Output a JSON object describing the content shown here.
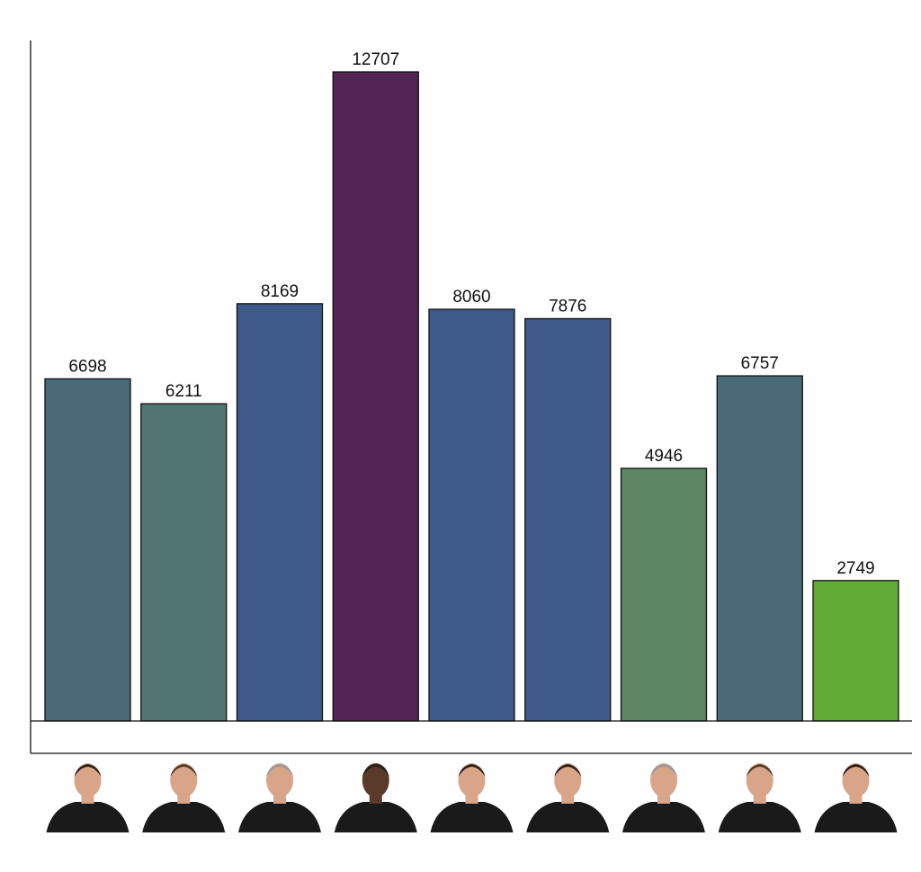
{
  "chart_data": {
    "type": "bar",
    "title": "",
    "xlabel": "",
    "ylabel": "",
    "ylim": [
      0,
      12707
    ],
    "grid": false,
    "legend": "none",
    "values": [
      6698,
      6211,
      8169,
      12707,
      8060,
      7876,
      4946,
      6757,
      2749
    ],
    "colors": [
      "#4a6a78",
      "#517671",
      "#3d5a88",
      "#532555",
      "#3d5a88",
      "#3d5a88",
      "#5b8661",
      "#4a6a78",
      "#62aa36"
    ],
    "category_icons": [
      "portrait-1-icon",
      "portrait-2-icon",
      "portrait-3-icon",
      "portrait-4-icon",
      "portrait-5-icon",
      "portrait-6-icon",
      "portrait-7-icon",
      "portrait-8-icon",
      "portrait-9-icon"
    ]
  }
}
